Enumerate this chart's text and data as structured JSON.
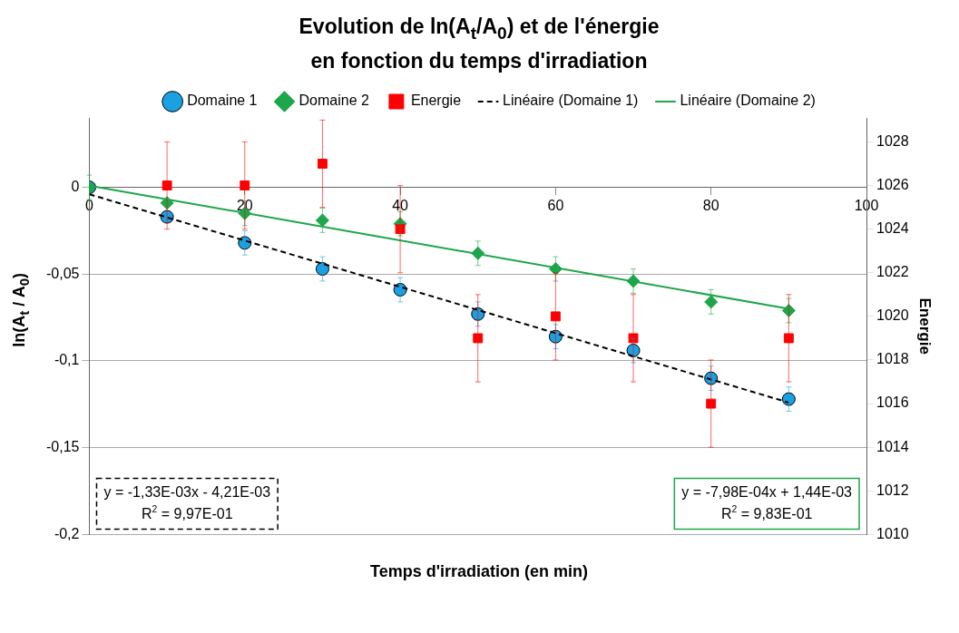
{
  "chart_data": {
    "type": "scatter",
    "title": "Evolution de ln(A$_{t}$/A$_{0}$) et de l'énergie\nen fonction du temps d'irradiation",
    "xlabel": "Temps d'irradiation (en min)",
    "ylabel": "ln(A$_{t}$ / A$_{0}$)",
    "y2label": "Energie",
    "xlim": [
      0,
      100
    ],
    "xticks": [
      0,
      20,
      40,
      60,
      80,
      100
    ],
    "ylim": [
      -0.2,
      0.04
    ],
    "yticks": [
      {
        "value": -0.2,
        "label": "-0,2"
      },
      {
        "value": -0.15,
        "label": "-0,15"
      },
      {
        "value": -0.1,
        "label": "-0,1"
      },
      {
        "value": -0.05,
        "label": "-0,05"
      },
      0
    ],
    "y2lim": [
      1010,
      1029.1
    ],
    "y2ticks": [
      1010,
      1012,
      1014,
      1016,
      1018,
      1020,
      1022,
      1024,
      1026,
      1028
    ],
    "grid": "y",
    "legend": "top",
    "series": [
      {
        "name": "Domaine 1",
        "type": "scatter",
        "marker": "circle",
        "color": "#1ba1e2",
        "x": [
          0,
          10,
          20,
          30,
          40,
          50,
          60,
          70,
          80,
          90
        ],
        "values": [
          0,
          -0.017,
          -0.032,
          -0.047,
          -0.059,
          -0.073,
          -0.086,
          -0.094,
          -0.11,
          -0.122
        ],
        "errors": [
          null,
          null,
          0.007,
          0.007,
          0.007,
          0.007,
          0.007,
          0.007,
          0.007,
          0.007
        ]
      },
      {
        "name": "Domaine 2",
        "type": "scatter",
        "marker": "diamond",
        "color": "#1ea64a",
        "x": [
          0,
          10,
          20,
          30,
          40,
          50,
          60,
          70,
          80,
          90
        ],
        "values": [
          0,
          -0.009,
          -0.015,
          -0.019,
          -0.021,
          -0.038,
          -0.047,
          -0.054,
          -0.066,
          -0.071
        ],
        "errors": [
          0.007,
          null,
          0.007,
          0.007,
          0.007,
          0.007,
          0.007,
          0.007,
          0.007,
          0.007
        ]
      },
      {
        "name": "Energie",
        "type": "scatter",
        "marker": "square",
        "color": "#ff0000",
        "axis": "y2",
        "x": [
          10,
          20,
          30,
          40,
          50,
          60,
          70,
          80,
          90
        ],
        "values": [
          1026,
          1026,
          1027,
          1024,
          1019,
          1020,
          1019,
          1016,
          1019
        ],
        "errors": [
          2,
          2,
          2,
          2,
          2,
          2,
          2,
          2,
          2
        ]
      },
      {
        "name": "Linéaire (Domaine 1)",
        "type": "line",
        "marker": "none",
        "line_style": "dashed",
        "color": "#000000",
        "x": [
          0,
          90
        ],
        "values": [
          -0.004,
          -0.124
        ]
      },
      {
        "name": "Linéaire (Domaine 2)",
        "type": "line",
        "marker": "none",
        "line_style": "solid",
        "color": "#1ea64a",
        "x": [
          0,
          90
        ],
        "values": [
          0.001,
          -0.07
        ]
      }
    ],
    "annotations": [
      "y = -1,33E-03x - 4,21E-03\nR$^{2}$ = 9,97E-01",
      "y = -7,98E-04x + 1,44E-03\nR$^{2}$ = 9,83E-01"
    ]
  }
}
